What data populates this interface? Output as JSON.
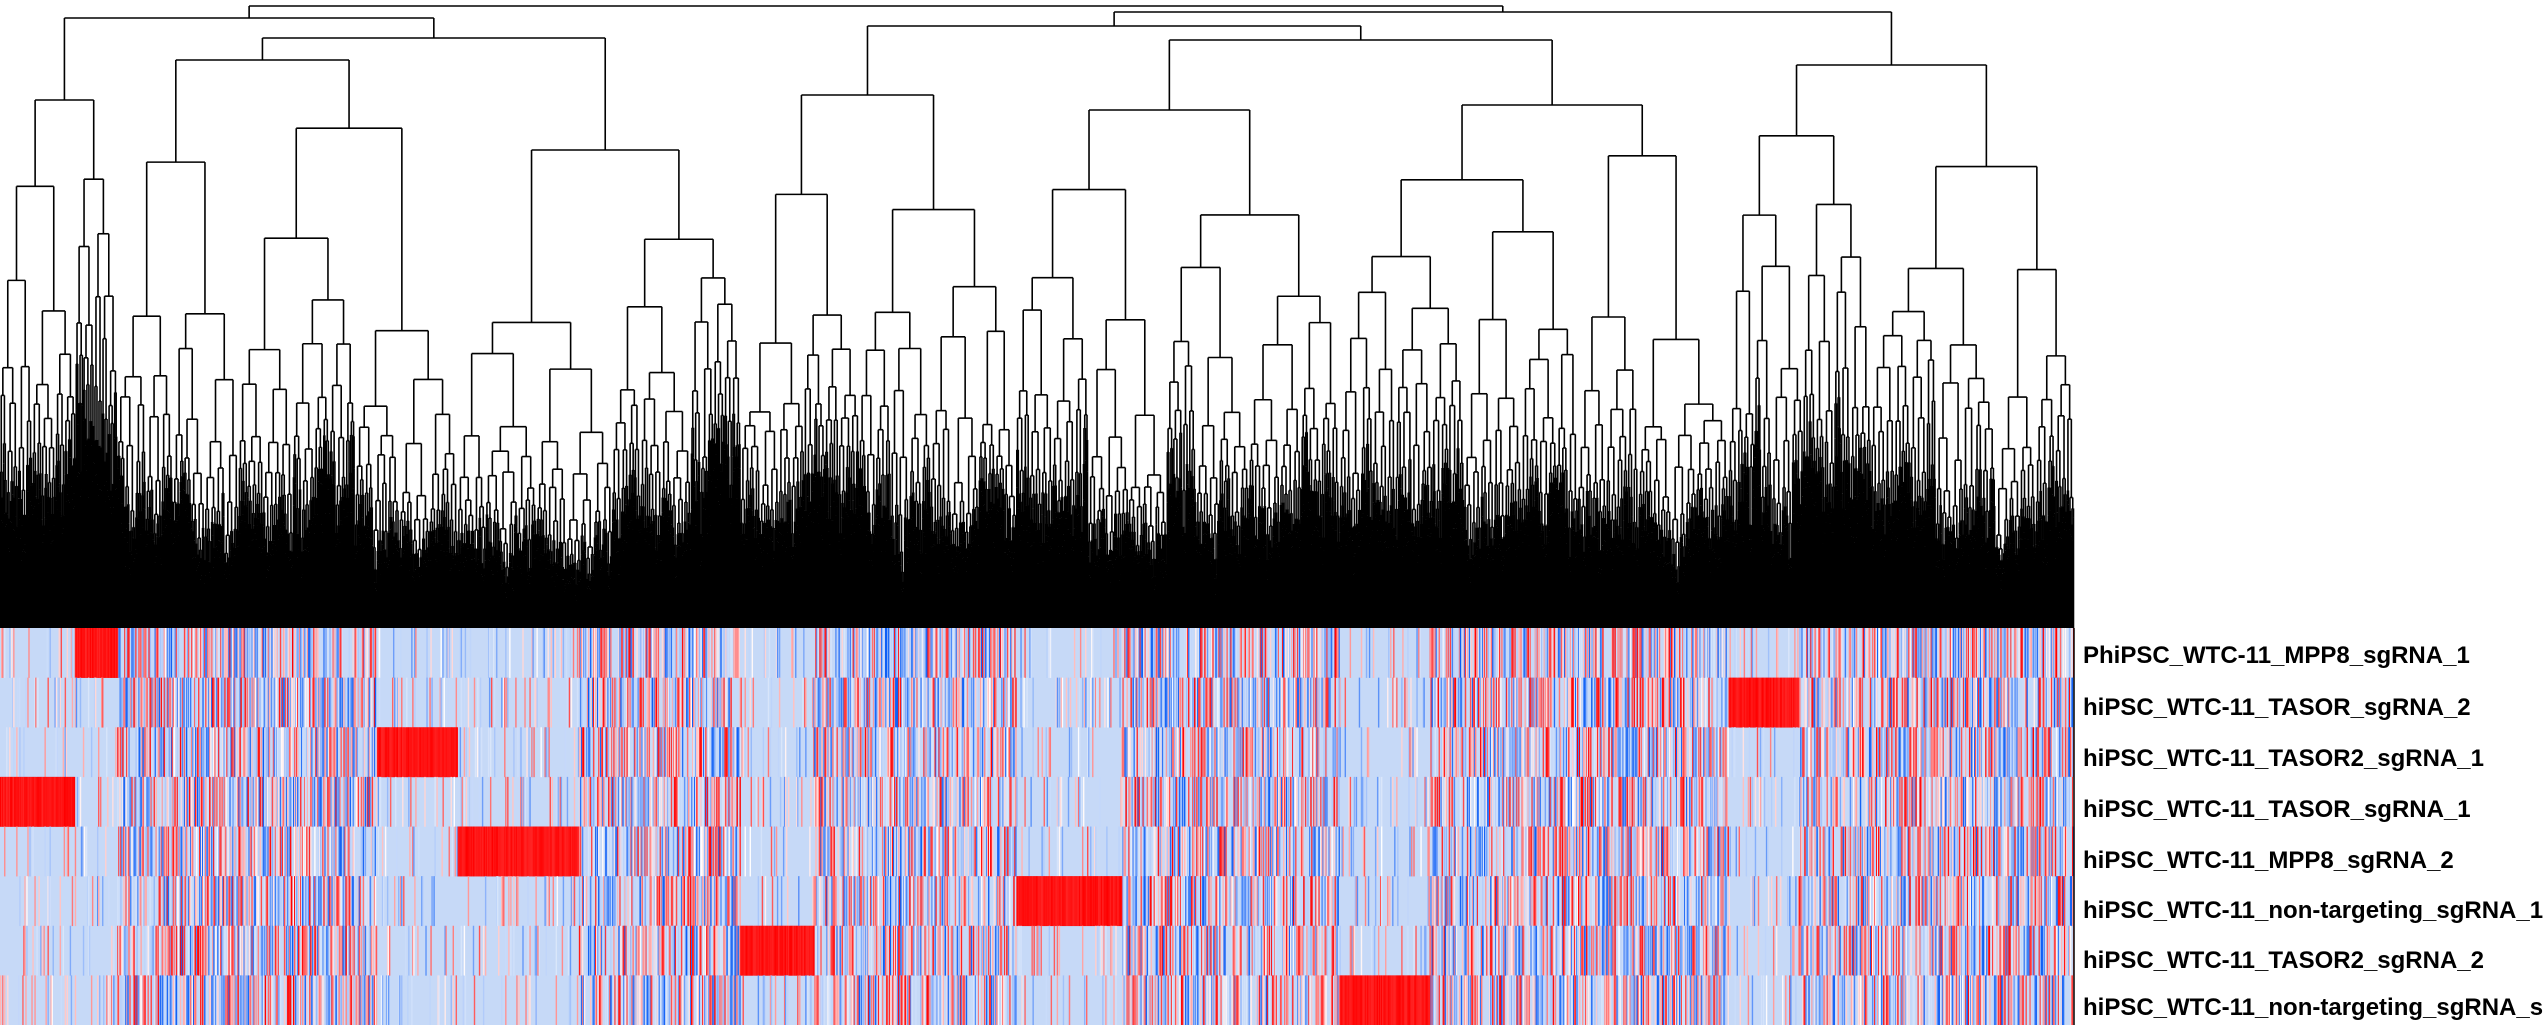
{
  "chart_data": {
    "type": "heatmap",
    "title": "",
    "rows": [
      "PhiPSC_WTC-11_MPP8_sgRNA_1",
      "hiPSC_WTC-11_TASOR_sgRNA_2",
      "hiPSC_WTC-11_TASOR2_sgRNA_1",
      "hiPSC_WTC-11_TASOR_sgRNA_1",
      "hiPSC_WTC-11_MPP8_sgRNA_2",
      "hiPSC_WTC-11_non-targeting_sgRNA_1",
      "hiPSC_WTC-11_TASOR2_sgRNA_2",
      "hiPSC_WTC-11_non-targeting_sgRNA_s"
    ],
    "column_clusters": [
      {
        "cluster": 1,
        "n_columns": 74,
        "hot_row": 3
      },
      {
        "cluster": 2,
        "n_columns": 42,
        "hot_row": 0
      },
      {
        "cluster": 3,
        "n_columns": 257,
        "hot_row": null
      },
      {
        "cluster": 4,
        "n_columns": 80,
        "hot_row": 2
      },
      {
        "cluster": 5,
        "n_columns": 120,
        "hot_row": 4
      },
      {
        "cluster": 6,
        "n_columns": 160,
        "hot_row": null
      },
      {
        "cluster": 7,
        "n_columns": 73,
        "hot_row": 6
      },
      {
        "cluster": 8,
        "n_columns": 200,
        "hot_row": null
      },
      {
        "cluster": 9,
        "n_columns": 105,
        "hot_row": 5
      },
      {
        "cluster": 10,
        "n_columns": 215,
        "hot_row": null
      },
      {
        "cluster": 11,
        "n_columns": 90,
        "hot_row": 7
      },
      {
        "cluster": 12,
        "n_columns": 295,
        "hot_row": null
      },
      {
        "cluster": 13,
        "n_columns": 70,
        "hot_row": 1
      },
      {
        "cluster": 14,
        "n_columns": 272,
        "hot_row": null
      }
    ],
    "value_range": [
      -1,
      1
    ],
    "colors": {
      "low": "#0a5cf5",
      "baseline": "#c6d9f7",
      "mid": "#ffffff",
      "high": "#ff0000",
      "dendrogram": "#000000"
    },
    "column_dendrogram": true,
    "row_dendrogram": false,
    "legend": "none"
  }
}
